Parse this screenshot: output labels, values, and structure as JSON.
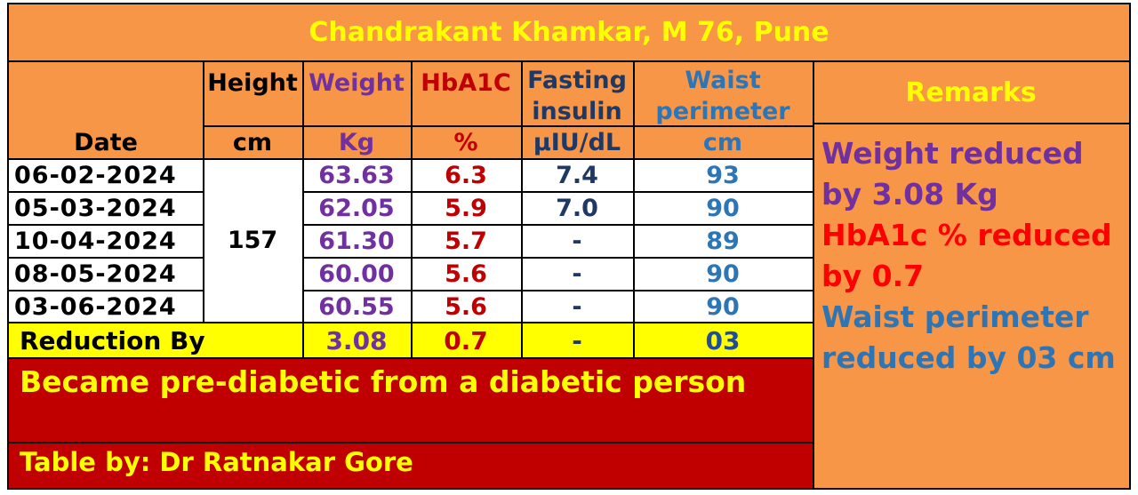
{
  "title": "Chandrakant Khamkar, M 76, Pune",
  "columns": {
    "date": "Date",
    "height": "Height",
    "height_unit": "cm",
    "weight": "Weight",
    "weight_unit": "Kg",
    "hba1c": "HbA1C",
    "hba1c_unit": "%",
    "insulin_line1": "Fasting",
    "insulin_line2": "insulin",
    "insulin_unit": "µIU/dL",
    "waist_line1": "Waist",
    "waist_line2": "perimeter",
    "waist_unit": "cm",
    "remarks": "Remarks"
  },
  "height_value": "157",
  "rows": [
    {
      "date": "06-02-2024",
      "weight": "63.63",
      "hba1c": "6.3",
      "insulin": "7.4",
      "waist": "93"
    },
    {
      "date": "05-03-2024",
      "weight": "62.05",
      "hba1c": "5.9",
      "insulin": "7.0",
      "waist": "90"
    },
    {
      "date": "10-04-2024",
      "weight": "61.30",
      "hba1c": "5.7",
      "insulin": "-",
      "waist": "89"
    },
    {
      "date": "08-05-2024",
      "weight": "60.00",
      "hba1c": "5.6",
      "insulin": "-",
      "waist": "90"
    },
    {
      "date": "03-06-2024",
      "weight": "60.55",
      "hba1c": "5.6",
      "insulin": "-",
      "waist": "90"
    }
  ],
  "reduction": {
    "label": "Reduction By",
    "weight": "3.08",
    "hba1c": "0.7",
    "insulin": "-",
    "waist": "03"
  },
  "summary": "Became pre-diabetic from a diabetic person",
  "credit": "Table by: Dr Ratnakar Gore",
  "remarks_text": {
    "weight": "Weight reduced by 3.08 Kg",
    "hba1c": "HbA1c % reduced by 0.7",
    "waist": "Waist perimeter reduced by 03 cm"
  },
  "colors": {
    "background": "#f79646",
    "title": "#ffff00",
    "weight": "#7030a0",
    "hba1c": "#c00000",
    "insulin": "#1f3864",
    "waist": "#2e75b6",
    "remarks_hba1c": "#ff0000",
    "highlight_row": "#ffff00",
    "summary_bg": "#c00000"
  }
}
